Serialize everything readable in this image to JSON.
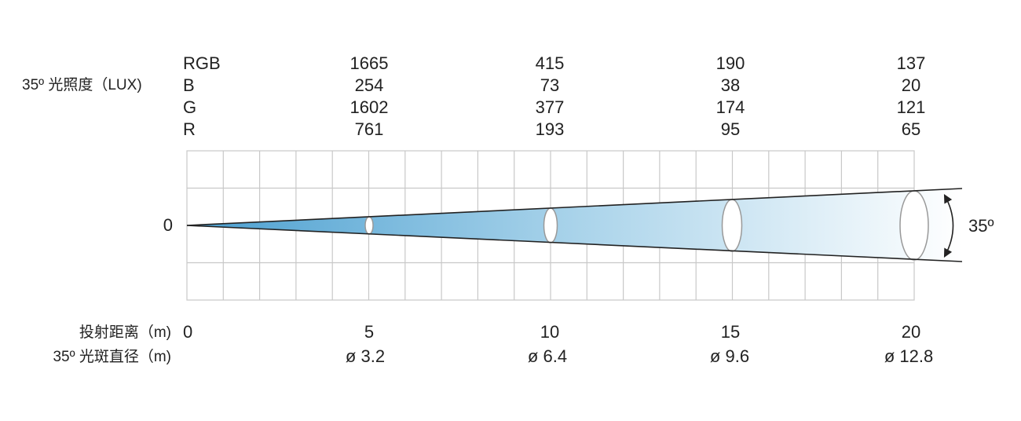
{
  "illuminance": {
    "label": "35º 光照度（LUX)",
    "rows": [
      {
        "name": "RGB",
        "values": [
          "1665",
          "415",
          "190",
          "137"
        ]
      },
      {
        "name": "B",
        "values": [
          "254",
          "73",
          "38",
          "20"
        ]
      },
      {
        "name": "G",
        "values": [
          "1602",
          "377",
          "174",
          "121"
        ]
      },
      {
        "name": "R",
        "values": [
          "761",
          "193",
          "95",
          "65"
        ]
      }
    ]
  },
  "origin_label": "0",
  "beam_angle_label": "35º",
  "distance": {
    "label": "投射距离（m)",
    "values": [
      "0",
      "5",
      "10",
      "15",
      "20"
    ]
  },
  "spot_diameter": {
    "label": "35º 光斑直径（m)",
    "values": [
      "ø 3.2",
      "ø 6.4",
      "ø 9.6",
      "ø 12.8"
    ]
  },
  "colors": {
    "beam_dark": "#4a9fd0",
    "beam_light": "#ffffff",
    "grid": "#c8c8c8",
    "line": "#222222"
  }
}
